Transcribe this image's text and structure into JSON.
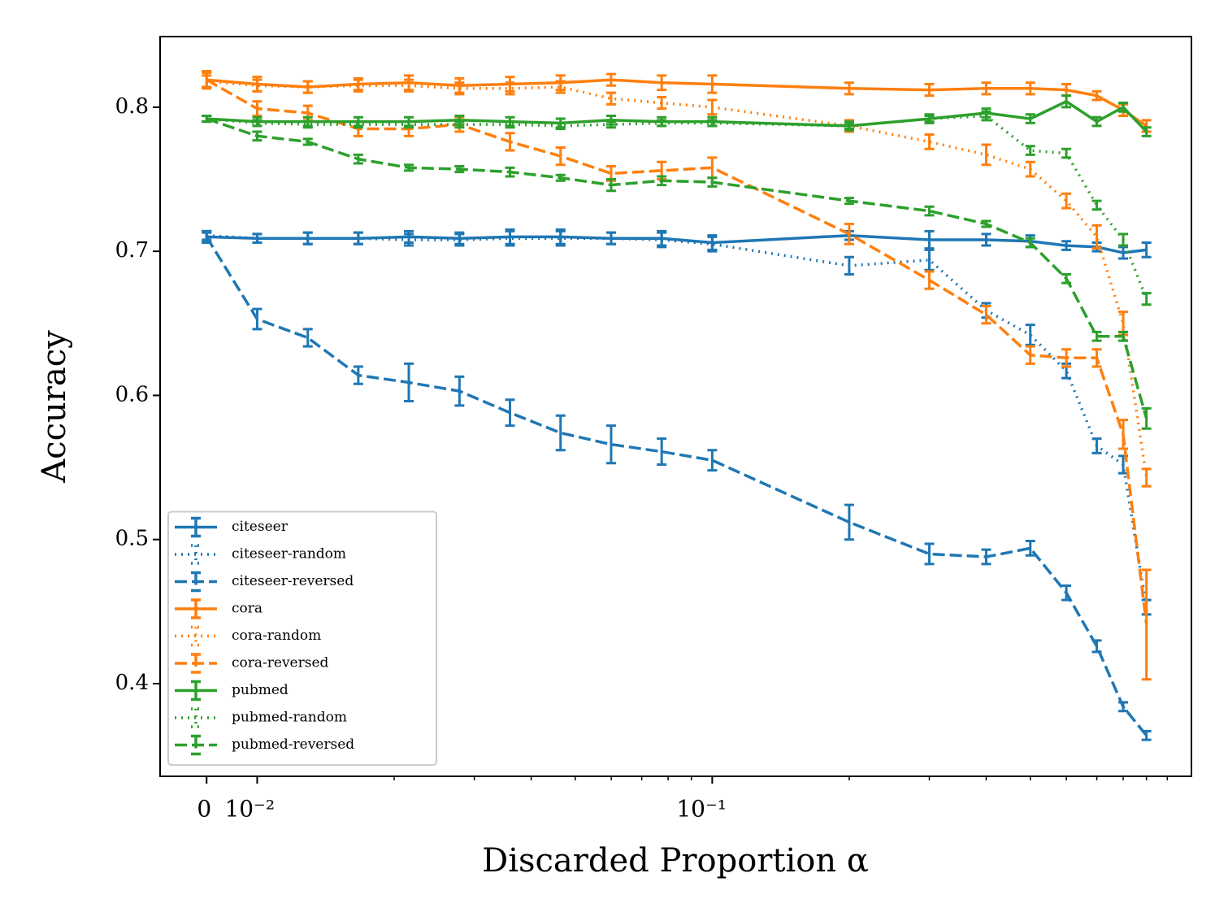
{
  "chart_data": {
    "type": "line",
    "xlabel": "Discarded Proportion α",
    "ylabel": "Accuracy",
    "xscale": "symlog",
    "linthresh": 0.01,
    "linscale": 0.1,
    "x": [
      0,
      0.01,
      0.01292,
      0.01668,
      0.02154,
      0.02783,
      0.03594,
      0.04642,
      0.05995,
      0.07743,
      0.1,
      0.2,
      0.3,
      0.4,
      0.5,
      0.6,
      0.7,
      0.8,
      0.9
    ],
    "xlim": [
      -0.0092,
      1.13
    ],
    "xticks": [
      0,
      {
        "value": 0.01,
        "label": "10⁻²"
      },
      {
        "value": 0.1,
        "label": "10⁻¹"
      }
    ],
    "xminorticks": [
      0.02,
      0.03,
      0.04,
      0.05,
      0.06,
      0.07,
      0.08,
      0.09,
      0.2,
      0.3,
      0.4,
      0.5,
      0.6,
      0.7,
      0.8,
      0.9,
      1
    ],
    "ylim": [
      0.3357,
      0.849
    ],
    "yticks": [
      0.4,
      0.5,
      0.6,
      0.7,
      0.8
    ],
    "legend": "lower left",
    "series": [
      {
        "name": "citeseer",
        "color": "#1f77b4",
        "linestyle": "solid",
        "values": [
          0.71,
          0.709,
          0.709,
          0.709,
          0.71,
          0.709,
          0.71,
          0.71,
          0.709,
          0.709,
          0.706,
          0.711,
          0.708,
          0.708,
          0.707,
          0.704,
          0.703,
          0.699,
          0.701
        ],
        "errors": [
          0.003,
          0.003,
          0.004,
          0.004,
          0.004,
          0.004,
          0.005,
          0.005,
          0.004,
          0.005,
          0.005,
          0.003,
          0.006,
          0.004,
          0.004,
          0.003,
          0.003,
          0.004,
          0.005
        ]
      },
      {
        "name": "citeseer-random",
        "color": "#1f77b4",
        "linestyle": "dotted",
        "values": [
          0.711,
          0.709,
          0.709,
          0.709,
          0.708,
          0.708,
          0.709,
          0.709,
          0.709,
          0.708,
          0.705,
          0.69,
          0.694,
          0.659,
          0.642,
          0.617,
          0.565,
          0.552,
          0.453
        ],
        "errors": [
          0.003,
          0.003,
          0.004,
          0.004,
          0.004,
          0.004,
          0.005,
          0.005,
          0.004,
          0.005,
          0.005,
          0.006,
          0.007,
          0.005,
          0.007,
          0.005,
          0.005,
          0.006,
          0.005
        ]
      },
      {
        "name": "citeseer-reversed",
        "color": "#1f77b4",
        "linestyle": "dashed",
        "values": [
          0.71,
          0.653,
          0.64,
          0.614,
          0.609,
          0.603,
          0.588,
          0.574,
          0.566,
          0.561,
          0.555,
          0.512,
          0.49,
          0.488,
          0.494,
          0.463,
          0.426,
          0.384,
          0.364
        ],
        "errors": [
          0.004,
          0.007,
          0.006,
          0.006,
          0.013,
          0.01,
          0.009,
          0.012,
          0.013,
          0.009,
          0.007,
          0.012,
          0.007,
          0.005,
          0.005,
          0.005,
          0.004,
          0.003,
          0.003
        ]
      },
      {
        "name": "cora",
        "color": "#ff7f0e",
        "linestyle": "solid",
        "values": [
          0.819,
          0.816,
          0.814,
          0.816,
          0.817,
          0.815,
          0.816,
          0.817,
          0.819,
          0.817,
          0.816,
          0.813,
          0.812,
          0.813,
          0.813,
          0.812,
          0.808,
          0.798,
          0.787
        ],
        "errors": [
          0.006,
          0.005,
          0.004,
          0.004,
          0.005,
          0.005,
          0.005,
          0.005,
          0.004,
          0.005,
          0.006,
          0.004,
          0.004,
          0.004,
          0.004,
          0.004,
          0.003,
          0.004,
          0.004
        ]
      },
      {
        "name": "cora-random",
        "color": "#ff7f0e",
        "linestyle": "dotted",
        "values": [
          0.818,
          0.815,
          0.814,
          0.815,
          0.815,
          0.813,
          0.813,
          0.814,
          0.806,
          0.803,
          0.8,
          0.787,
          0.776,
          0.767,
          0.757,
          0.735,
          0.71,
          0.65,
          0.543
        ],
        "errors": [
          0.004,
          0.004,
          0.004,
          0.004,
          0.004,
          0.004,
          0.004,
          0.004,
          0.004,
          0.004,
          0.005,
          0.004,
          0.005,
          0.007,
          0.005,
          0.005,
          0.008,
          0.008,
          0.006
        ]
      },
      {
        "name": "cora-reversed",
        "color": "#ff7f0e",
        "linestyle": "dashed",
        "values": [
          0.819,
          0.799,
          0.796,
          0.785,
          0.785,
          0.788,
          0.776,
          0.766,
          0.754,
          0.756,
          0.758,
          0.712,
          0.68,
          0.656,
          0.628,
          0.626,
          0.626,
          0.573,
          0.441
        ],
        "errors": [
          0.005,
          0.005,
          0.005,
          0.005,
          0.005,
          0.005,
          0.006,
          0.006,
          0.005,
          0.006,
          0.007,
          0.007,
          0.006,
          0.006,
          0.006,
          0.006,
          0.006,
          0.01,
          0.038
        ]
      },
      {
        "name": "pubmed",
        "color": "#2ca02c",
        "linestyle": "solid",
        "values": [
          0.792,
          0.79,
          0.79,
          0.79,
          0.79,
          0.791,
          0.79,
          0.789,
          0.791,
          0.79,
          0.79,
          0.787,
          0.792,
          0.796,
          0.792,
          0.804,
          0.79,
          0.8,
          0.783
        ],
        "errors": [
          0.002,
          0.003,
          0.003,
          0.003,
          0.003,
          0.003,
          0.003,
          0.003,
          0.003,
          0.003,
          0.003,
          0.003,
          0.003,
          0.003,
          0.003,
          0.004,
          0.003,
          0.003,
          0.003
        ]
      },
      {
        "name": "pubmed-random",
        "color": "#2ca02c",
        "linestyle": "dotted",
        "values": [
          0.792,
          0.789,
          0.788,
          0.788,
          0.788,
          0.788,
          0.788,
          0.787,
          0.788,
          0.789,
          0.789,
          0.787,
          0.792,
          0.794,
          0.77,
          0.768,
          0.732,
          0.708,
          0.667
        ],
        "errors": [
          0.002,
          0.002,
          0.002,
          0.002,
          0.002,
          0.002,
          0.002,
          0.002,
          0.002,
          0.002,
          0.002,
          0.002,
          0.002,
          0.003,
          0.003,
          0.003,
          0.003,
          0.004,
          0.004
        ]
      },
      {
        "name": "pubmed-reversed",
        "color": "#2ca02c",
        "linestyle": "dashed",
        "values": [
          0.792,
          0.78,
          0.776,
          0.764,
          0.758,
          0.757,
          0.755,
          0.751,
          0.746,
          0.749,
          0.748,
          0.735,
          0.728,
          0.719,
          0.706,
          0.681,
          0.641,
          0.641,
          0.584
        ],
        "errors": [
          0.002,
          0.003,
          0.002,
          0.003,
          0.002,
          0.002,
          0.003,
          0.002,
          0.004,
          0.003,
          0.003,
          0.002,
          0.003,
          0.002,
          0.003,
          0.003,
          0.003,
          0.003,
          0.007
        ]
      }
    ]
  }
}
